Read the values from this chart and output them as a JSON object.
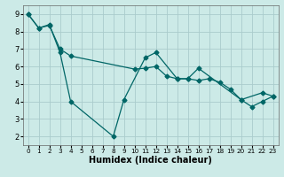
{
  "xlabel": "Humidex (Indice chaleur)",
  "bg_color": "#cceae7",
  "grid_color": "#aacccc",
  "line_color": "#006666",
  "xlim": [
    -0.5,
    23.5
  ],
  "ylim": [
    1.5,
    9.5
  ],
  "xticks": [
    0,
    1,
    2,
    3,
    4,
    5,
    6,
    7,
    8,
    9,
    10,
    11,
    12,
    13,
    14,
    15,
    16,
    17,
    18,
    19,
    20,
    21,
    22,
    23
  ],
  "yticks": [
    2,
    3,
    4,
    5,
    6,
    7,
    8,
    9
  ],
  "line1_x": [
    0,
    1,
    2,
    3,
    4,
    8,
    9,
    11,
    12,
    14,
    15,
    16,
    20,
    22,
    23
  ],
  "line1_y": [
    9.0,
    8.2,
    8.4,
    6.8,
    4.0,
    2.0,
    4.1,
    6.5,
    6.8,
    5.3,
    5.3,
    5.9,
    4.1,
    4.5,
    4.3
  ],
  "line2_x": [
    0,
    1,
    2,
    3,
    4,
    10,
    11,
    12,
    13,
    14,
    15,
    16,
    17,
    18,
    19,
    20,
    21,
    22,
    23
  ],
  "line2_y": [
    9.0,
    8.2,
    8.35,
    7.0,
    6.6,
    5.85,
    5.9,
    6.0,
    5.45,
    5.3,
    5.3,
    5.2,
    5.3,
    5.1,
    4.7,
    4.1,
    3.7,
    4.0,
    4.3
  ],
  "line1_segments": [
    {
      "x": [
        0,
        1,
        2,
        3,
        4
      ],
      "y": [
        9.0,
        8.2,
        8.4,
        6.8,
        4.0
      ]
    },
    {
      "x": [
        4,
        8
      ],
      "y": [
        4.0,
        2.0
      ]
    },
    {
      "x": [
        8,
        9
      ],
      "y": [
        2.0,
        4.1
      ]
    },
    {
      "x": [
        9,
        11,
        12
      ],
      "y": [
        4.1,
        6.5,
        6.8
      ]
    },
    {
      "x": [
        12,
        14,
        15,
        16
      ],
      "y": [
        6.8,
        5.3,
        5.3,
        5.9
      ]
    },
    {
      "x": [
        16,
        20
      ],
      "y": [
        5.9,
        4.1
      ]
    },
    {
      "x": [
        20,
        22,
        23
      ],
      "y": [
        4.1,
        4.5,
        4.3
      ]
    }
  ],
  "font_size_label": 7,
  "font_size_tick": 6,
  "marker_size": 2.5
}
